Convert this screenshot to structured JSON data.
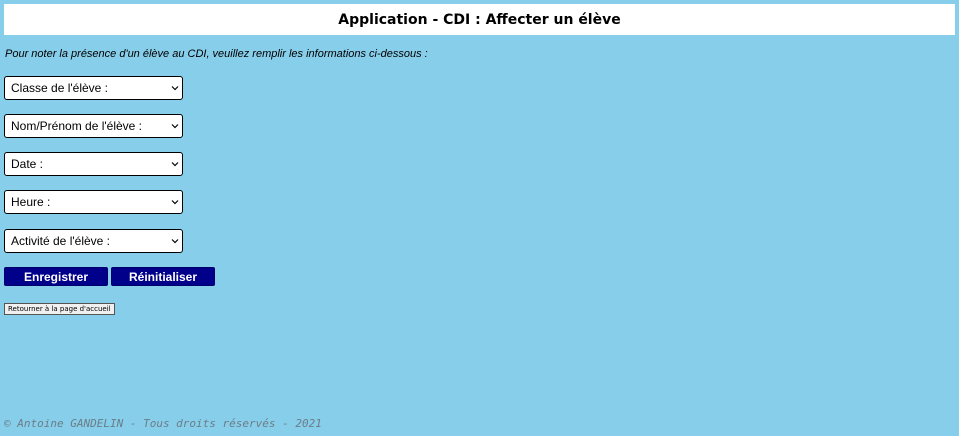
{
  "header": {
    "title": "Application - CDI : Affecter un élève"
  },
  "intro": {
    "text": "Pour noter la présence d'un élève au CDI, veuillez remplir les informations ci-dessous :"
  },
  "form": {
    "classe": "Classe de l'élève :",
    "nom_prenom": "Nom/Prénom de l'élève :",
    "date": "Date :",
    "heure": "Heure :",
    "activite": "Activité de l'élève :"
  },
  "buttons": {
    "save": "Enregistrer",
    "reset": "Réinitialiser",
    "back": "Retourner à la page d'accueil"
  },
  "footer": {
    "text": "© Antoine GANDELIN - Tous droits réservés - 2021"
  },
  "icons": {
    "dropdown": "chevron-down-icon"
  },
  "colors": {
    "background": "#87ceeb",
    "header_bg": "#ffffff",
    "button_bg": "#00008b",
    "button_text": "#ffffff",
    "footer_text": "#6b7d87"
  }
}
